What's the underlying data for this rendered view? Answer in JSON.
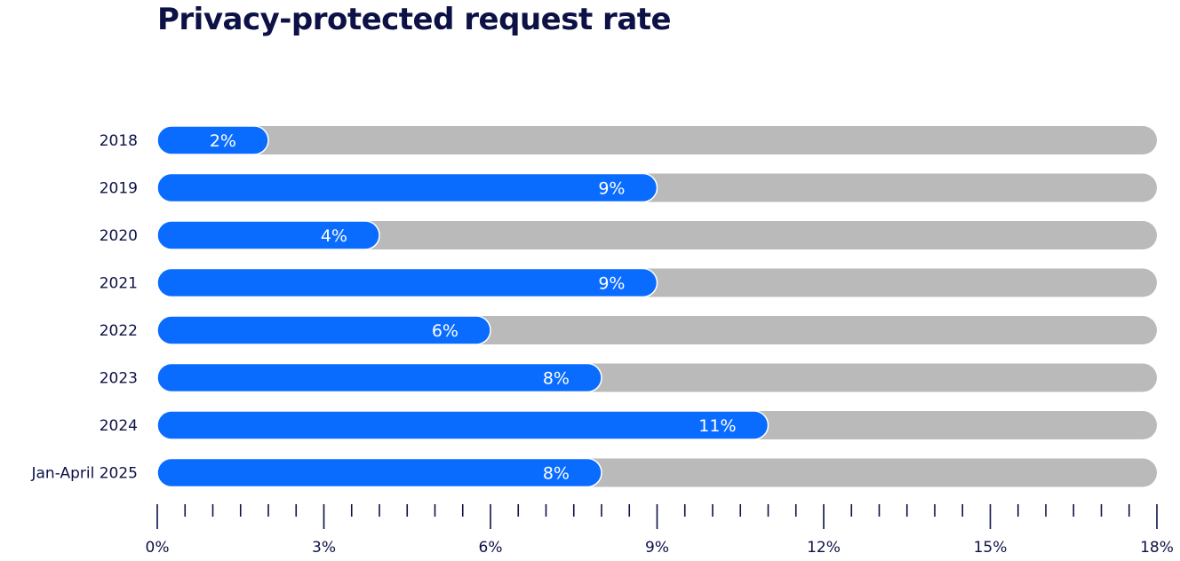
{
  "title": "Privacy-protected request rate",
  "chart_data": {
    "type": "bar",
    "orientation": "horizontal",
    "title": "Privacy-protected request rate",
    "categories": [
      "2018",
      "2019",
      "2020",
      "2021",
      "2022",
      "2023",
      "2024",
      "Jan-April 2025"
    ],
    "values": [
      2,
      9,
      4,
      9,
      6,
      8,
      11,
      8
    ],
    "value_labels": [
      "2%",
      "9%",
      "4%",
      "9%",
      "6%",
      "8%",
      "11%",
      "8%"
    ],
    "xlim": [
      0,
      18
    ],
    "x_ticks": [
      0,
      3,
      6,
      9,
      12,
      15,
      18
    ],
    "x_tick_labels": [
      "0%",
      "3%",
      "6%",
      "9%",
      "12%",
      "15%",
      "18%"
    ],
    "minor_tick_step": 0.5,
    "grid": false,
    "legend": "none",
    "colors": {
      "bar": "#0a6cff",
      "track": "#bababa",
      "text_dark": "#0d1146",
      "text_light": "#ffffff"
    }
  }
}
